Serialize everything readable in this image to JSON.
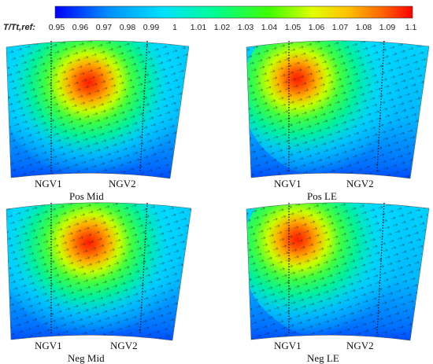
{
  "colorbar": {
    "label": "T/Tt,ref:",
    "ticks": [
      "0.95",
      "0.96",
      "0.97",
      "0.98",
      "0.99",
      "1",
      "1.01",
      "1.02",
      "1.03",
      "1.04",
      "1.05",
      "1.06",
      "1.07",
      "1.08",
      "1.09",
      "1.1"
    ],
    "colors": [
      "#0000ff",
      "#00a0ff",
      "#00e6ff",
      "#00ff80",
      "#80ff00",
      "#ffff00",
      "#ffa000",
      "#ff0000"
    ]
  },
  "panels": [
    {
      "id": "pos-mid",
      "label": "Pos Mid",
      "vane1": "NGV1",
      "vane2": "NGV2"
    },
    {
      "id": "pos-le",
      "label": "Pos LE",
      "vane1": "NGV1",
      "vane2": "NGV2"
    },
    {
      "id": "neg-mid",
      "label": "Neg Mid",
      "vane1": "NGV1",
      "vane2": "NGV2"
    },
    {
      "id": "neg-le",
      "label": "Neg LE",
      "vane1": "NGV1",
      "vane2": "NGV2"
    }
  ]
}
